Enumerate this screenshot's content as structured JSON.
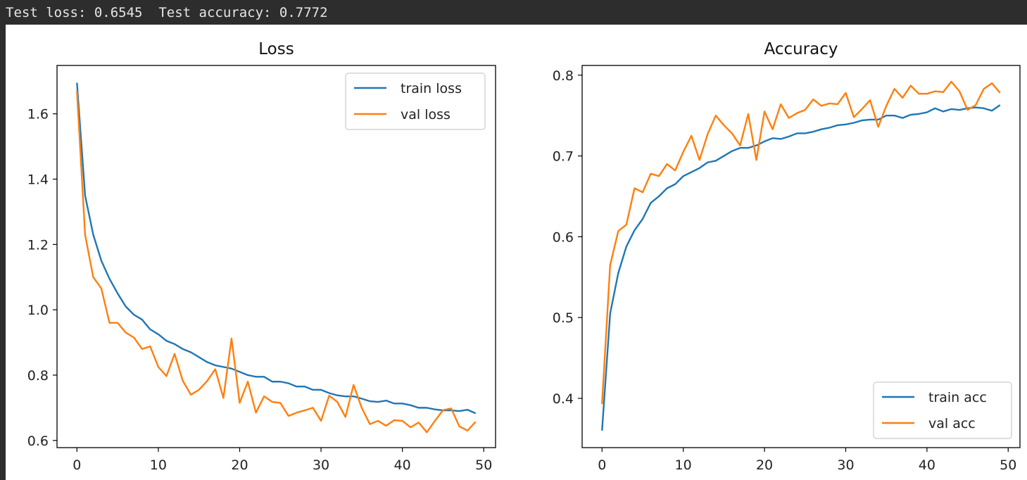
{
  "console": {
    "output_line": "Test loss: 0.6545  Test accuracy: 0.7772"
  },
  "colors": {
    "train": "#1f77b4",
    "val": "#ff7f0e"
  },
  "chart_data": [
    {
      "type": "line",
      "title": "Loss",
      "xlabel": "",
      "ylabel": "",
      "xlim": [
        -2.45,
        51.45
      ],
      "ylim": [
        0.578,
        1.748
      ],
      "xticks": [
        0,
        10,
        20,
        30,
        40,
        50
      ],
      "yticks": [
        0.6,
        0.8,
        1.0,
        1.2,
        1.4,
        1.6
      ],
      "ytick_labels": [
        "0.6",
        "0.8",
        "1.0",
        "1.2",
        "1.4",
        "1.6"
      ],
      "legend_position": "upper right",
      "x": [
        0,
        1,
        2,
        3,
        4,
        5,
        6,
        7,
        8,
        9,
        10,
        11,
        12,
        13,
        14,
        15,
        16,
        17,
        18,
        19,
        20,
        21,
        22,
        23,
        24,
        25,
        26,
        27,
        28,
        29,
        30,
        31,
        32,
        33,
        34,
        35,
        36,
        37,
        38,
        39,
        40,
        41,
        42,
        43,
        44,
        45,
        46,
        47,
        48,
        49
      ],
      "series": [
        {
          "name": "train loss",
          "color": "#1f77b4",
          "values": [
            1.695,
            1.35,
            1.23,
            1.15,
            1.095,
            1.05,
            1.01,
            0.985,
            0.97,
            0.94,
            0.925,
            0.905,
            0.895,
            0.88,
            0.87,
            0.855,
            0.84,
            0.83,
            0.825,
            0.82,
            0.81,
            0.8,
            0.795,
            0.795,
            0.78,
            0.78,
            0.775,
            0.765,
            0.765,
            0.755,
            0.755,
            0.745,
            0.738,
            0.735,
            0.735,
            0.728,
            0.72,
            0.718,
            0.722,
            0.713,
            0.713,
            0.708,
            0.7,
            0.7,
            0.695,
            0.692,
            0.692,
            0.69,
            0.694,
            0.683
          ]
        },
        {
          "name": "val loss",
          "color": "#ff7f0e",
          "values": [
            1.67,
            1.23,
            1.1,
            1.065,
            0.96,
            0.96,
            0.93,
            0.915,
            0.88,
            0.888,
            0.825,
            0.797,
            0.865,
            0.783,
            0.74,
            0.755,
            0.782,
            0.818,
            0.73,
            0.912,
            0.715,
            0.78,
            0.685,
            0.735,
            0.718,
            0.715,
            0.675,
            0.685,
            0.692,
            0.7,
            0.66,
            0.737,
            0.718,
            0.672,
            0.77,
            0.7,
            0.65,
            0.66,
            0.645,
            0.662,
            0.66,
            0.64,
            0.655,
            0.625,
            0.66,
            0.693,
            0.698,
            0.643,
            0.63,
            0.657
          ]
        }
      ]
    },
    {
      "type": "line",
      "title": "Accuracy",
      "xlabel": "",
      "ylabel": "",
      "xlim": [
        -2.45,
        51.45
      ],
      "ylim": [
        0.339,
        0.812
      ],
      "xticks": [
        0,
        10,
        20,
        30,
        40,
        50
      ],
      "yticks": [
        0.4,
        0.5,
        0.6,
        0.7,
        0.8
      ],
      "ytick_labels": [
        "0.4",
        "0.5",
        "0.6",
        "0.7",
        "0.8"
      ],
      "legend_position": "lower right",
      "x": [
        0,
        1,
        2,
        3,
        4,
        5,
        6,
        7,
        8,
        9,
        10,
        11,
        12,
        13,
        14,
        15,
        16,
        17,
        18,
        19,
        20,
        21,
        22,
        23,
        24,
        25,
        26,
        27,
        28,
        29,
        30,
        31,
        32,
        33,
        34,
        35,
        36,
        37,
        38,
        39,
        40,
        41,
        42,
        43,
        44,
        45,
        46,
        47,
        48,
        49
      ],
      "series": [
        {
          "name": "train acc",
          "color": "#1f77b4",
          "values": [
            0.36,
            0.505,
            0.555,
            0.588,
            0.608,
            0.622,
            0.642,
            0.65,
            0.66,
            0.665,
            0.675,
            0.68,
            0.685,
            0.692,
            0.694,
            0.7,
            0.706,
            0.71,
            0.71,
            0.713,
            0.718,
            0.722,
            0.721,
            0.724,
            0.728,
            0.728,
            0.73,
            0.733,
            0.735,
            0.738,
            0.739,
            0.741,
            0.744,
            0.745,
            0.745,
            0.75,
            0.75,
            0.747,
            0.751,
            0.752,
            0.754,
            0.759,
            0.755,
            0.758,
            0.757,
            0.759,
            0.76,
            0.759,
            0.756,
            0.763
          ]
        },
        {
          "name": "val acc",
          "color": "#ff7f0e",
          "values": [
            0.393,
            0.565,
            0.607,
            0.615,
            0.66,
            0.655,
            0.678,
            0.675,
            0.69,
            0.682,
            0.705,
            0.725,
            0.695,
            0.727,
            0.75,
            0.738,
            0.728,
            0.713,
            0.752,
            0.695,
            0.755,
            0.733,
            0.764,
            0.747,
            0.753,
            0.757,
            0.77,
            0.762,
            0.765,
            0.764,
            0.778,
            0.748,
            0.758,
            0.769,
            0.736,
            0.762,
            0.783,
            0.772,
            0.787,
            0.777,
            0.777,
            0.78,
            0.779,
            0.792,
            0.78,
            0.757,
            0.763,
            0.783,
            0.79,
            0.778
          ]
        }
      ]
    }
  ]
}
